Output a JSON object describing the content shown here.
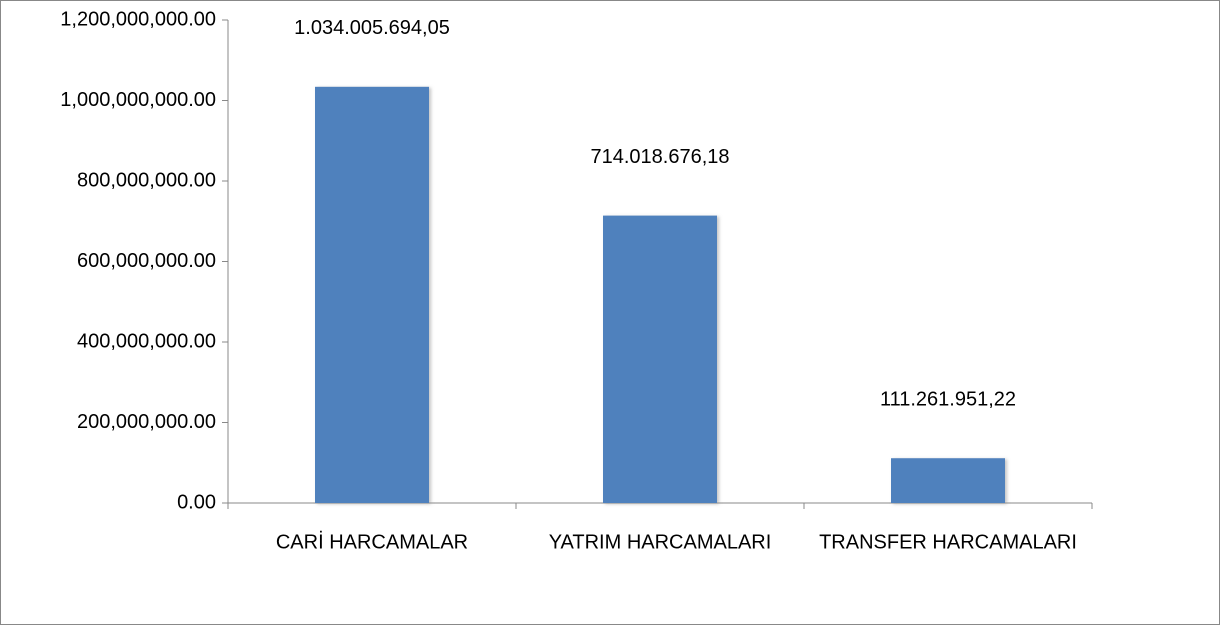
{
  "chart_data": {
    "type": "bar",
    "categories": [
      "CARİ HARCAMALAR",
      "YATRIM HARCAMALARI",
      "TRANSFER HARCAMALARI"
    ],
    "values": [
      1034005694.05,
      714018676.18,
      111261951.22
    ],
    "value_labels": [
      "1.034.005.694,05",
      "714.018.676,18",
      "111.261.951,22"
    ],
    "color": "#4f81bd",
    "ylim": [
      0,
      1200000000
    ],
    "yticks": [
      {
        "value": 0,
        "label": "0.00"
      },
      {
        "value": 200000000,
        "label": "200,000,000.00"
      },
      {
        "value": 400000000,
        "label": "400,000,000.00"
      },
      {
        "value": 600000000,
        "label": "600,000,000.00"
      },
      {
        "value": 800000000,
        "label": "800,000,000.00"
      },
      {
        "value": 1000000000,
        "label": "1,000,000,000.00"
      },
      {
        "value": 1200000000,
        "label": "1,200,000,000.00"
      }
    ],
    "grid": false
  }
}
